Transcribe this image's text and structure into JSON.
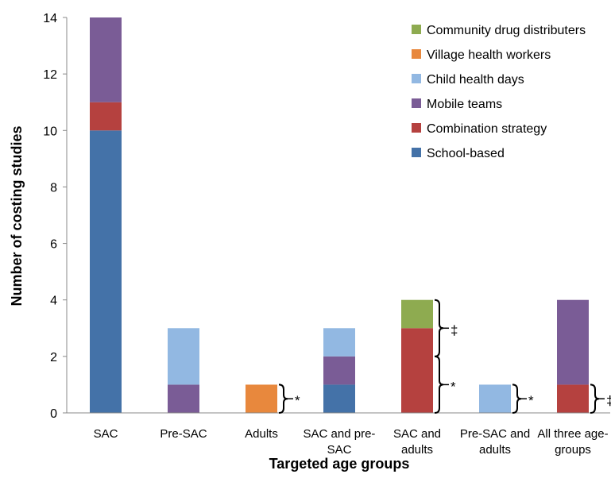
{
  "chart_data": {
    "type": "bar",
    "stacked": true,
    "xlabel": "Targeted age groups",
    "ylabel": "Number of costing studies",
    "ylim": [
      0,
      14
    ],
    "yticks": [
      0,
      2,
      4,
      6,
      8,
      10,
      12,
      14
    ],
    "grid": false,
    "legend_position": "top-right",
    "categories": [
      [
        "SAC"
      ],
      [
        "Pre-SAC"
      ],
      [
        "Adults"
      ],
      [
        "SAC and pre-",
        "SAC"
      ],
      [
        "SAC and",
        "adults"
      ],
      [
        "Pre-SAC and",
        "adults"
      ],
      [
        "All three age-",
        "groups"
      ]
    ],
    "series": [
      {
        "name": "School-based",
        "color": "#4472a8",
        "values": [
          10,
          0,
          0,
          1,
          0,
          0,
          0
        ]
      },
      {
        "name": "Combination strategy",
        "color": "#b5413f",
        "values": [
          1,
          0,
          0,
          0,
          3,
          0,
          1
        ]
      },
      {
        "name": "Mobile teams",
        "color": "#7a5c96",
        "values": [
          3,
          1,
          0,
          1,
          0,
          0,
          3
        ]
      },
      {
        "name": "Child health days",
        "color": "#92b8e2",
        "values": [
          0,
          2,
          0,
          1,
          0,
          1,
          0
        ]
      },
      {
        "name": "Village health workers",
        "color": "#e8883d",
        "values": [
          0,
          0,
          1,
          0,
          0,
          0,
          0
        ]
      },
      {
        "name": "Community drug distributers",
        "color": "#8eab50",
        "values": [
          0,
          0,
          0,
          0,
          1,
          0,
          0
        ]
      }
    ],
    "annotations": [
      {
        "category": 2,
        "from": 0,
        "to": 1,
        "symbol": "*"
      },
      {
        "category": 4,
        "from": 0,
        "to": 2,
        "symbol": "*"
      },
      {
        "category": 4,
        "from": 2,
        "to": 4,
        "symbol": "‡"
      },
      {
        "category": 5,
        "from": 0,
        "to": 1,
        "symbol": "*"
      },
      {
        "category": 6,
        "from": 0,
        "to": 1,
        "symbol": "‡"
      }
    ]
  }
}
